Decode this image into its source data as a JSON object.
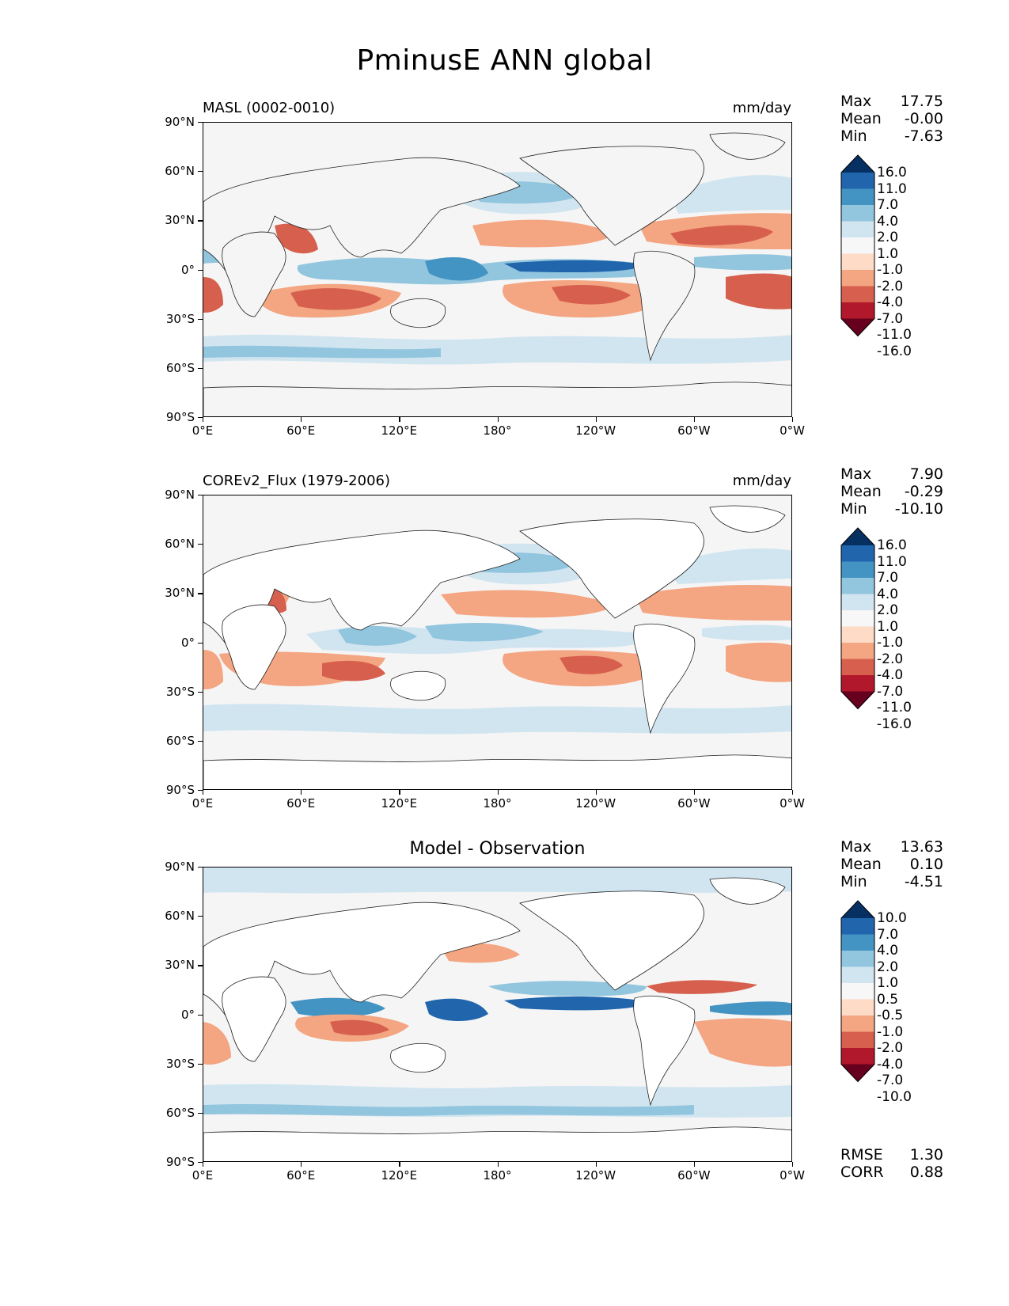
{
  "figure": {
    "title": "PminusE ANN global"
  },
  "axes": {
    "lat_ticks": [
      "90°N",
      "60°N",
      "30°N",
      "0°",
      "30°S",
      "60°S",
      "90°S"
    ],
    "lon_ticks": [
      "0°E",
      "60°E",
      "120°E",
      "180°",
      "120°W",
      "60°W",
      "0°W"
    ]
  },
  "colors": {
    "ocean_neutral": "#f5f5f5",
    "land": "#ffffff",
    "coast": "#222222"
  },
  "panels": [
    {
      "id": "test",
      "left_label": "MASL (0002-0010)",
      "right_label": "mm/day",
      "stats": {
        "max_label": "Max",
        "max": "17.75",
        "mean_label": "Mean",
        "mean": "-0.00",
        "min_label": "Min",
        "min": "-7.63"
      },
      "colorbar": {
        "labels": [
          "16.0",
          "11.0",
          "7.0",
          "4.0",
          "2.0",
          "1.0",
          "-1.0",
          "-2.0",
          "-4.0",
          "-7.0",
          "-11.0",
          "-16.0"
        ],
        "colors": [
          "#053061",
          "#2166ac",
          "#4393c3",
          "#92c5de",
          "#d1e5f0",
          "#f7f7f7",
          "#fddbc7",
          "#f4a582",
          "#d6604d",
          "#b2182b",
          "#67001f"
        ]
      }
    },
    {
      "id": "reference",
      "left_label": "COREv2_Flux (1979-2006)",
      "right_label": "mm/day",
      "stats": {
        "max_label": "Max",
        "max": "7.90",
        "mean_label": "Mean",
        "mean": "-0.29",
        "min_label": "Min",
        "min": "-10.10"
      },
      "colorbar": {
        "labels": [
          "16.0",
          "11.0",
          "7.0",
          "4.0",
          "2.0",
          "1.0",
          "-1.0",
          "-2.0",
          "-4.0",
          "-7.0",
          "-11.0",
          "-16.0"
        ],
        "colors": [
          "#053061",
          "#2166ac",
          "#4393c3",
          "#92c5de",
          "#d1e5f0",
          "#f7f7f7",
          "#fddbc7",
          "#f4a582",
          "#d6604d",
          "#b2182b",
          "#67001f"
        ]
      }
    },
    {
      "id": "difference",
      "center_title": "Model - Observation",
      "stats": {
        "max_label": "Max",
        "max": "13.63",
        "mean_label": "Mean",
        "mean": "0.10",
        "min_label": "Min",
        "min": "-4.51"
      },
      "colorbar": {
        "labels": [
          "10.0",
          "7.0",
          "4.0",
          "2.0",
          "1.0",
          "0.5",
          "-0.5",
          "-1.0",
          "-2.0",
          "-4.0",
          "-7.0",
          "-10.0"
        ],
        "colors": [
          "#053061",
          "#2166ac",
          "#4393c3",
          "#92c5de",
          "#d1e5f0",
          "#f7f7f7",
          "#fddbc7",
          "#f4a582",
          "#d6604d",
          "#b2182b",
          "#67001f"
        ]
      },
      "metrics": {
        "rmse_label": "RMSE",
        "rmse": "1.30",
        "corr_label": "CORR",
        "corr": "0.88"
      }
    }
  ]
}
